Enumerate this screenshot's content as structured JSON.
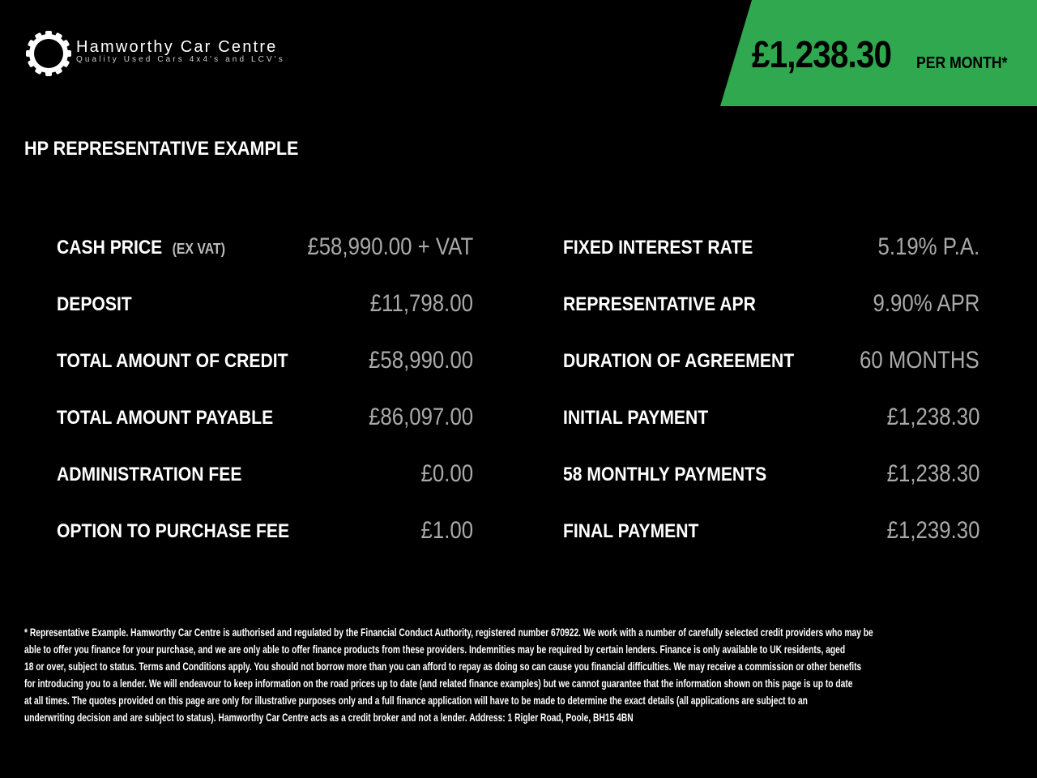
{
  "brand": {
    "name": "Hamworthy Car Centre",
    "tagline": "Quality Used Cars 4x4's and LCV's",
    "logo_icon": "gear-ring-icon"
  },
  "banner": {
    "price": "£1,238.30",
    "per": "PER MONTH*",
    "color": "#2fa84f"
  },
  "heading": "HP REPRESENTATIVE EXAMPLE",
  "left_rows": [
    {
      "label": "CASH PRICE",
      "note": "(EX VAT)",
      "value": "£58,990.00 + VAT"
    },
    {
      "label": "DEPOSIT",
      "value": "£11,798.00"
    },
    {
      "label": "TOTAL AMOUNT OF CREDIT",
      "value": "£58,990.00"
    },
    {
      "label": "TOTAL AMOUNT PAYABLE",
      "value": "£86,097.00"
    },
    {
      "label": "ADMINISTRATION FEE",
      "value": "£0.00"
    },
    {
      "label": "OPTION TO PURCHASE FEE",
      "value": "£1.00"
    }
  ],
  "right_rows": [
    {
      "label": "FIXED INTEREST RATE",
      "value": "5.19% P.A."
    },
    {
      "label": "REPRESENTATIVE APR",
      "value": "9.90% APR"
    },
    {
      "label": "DURATION OF AGREEMENT",
      "value": "60 MONTHS"
    },
    {
      "label": "INITIAL PAYMENT",
      "value": "£1,238.30"
    },
    {
      "label": "58 MONTHLY PAYMENTS",
      "value": "£1,238.30"
    },
    {
      "label": "FINAL PAYMENT",
      "value": "£1,239.30"
    }
  ],
  "disclaimer": [
    "* Representative Example. Hamworthy Car Centre is authorised and regulated by the Financial Conduct Authority, registered number 670922. We work with a number of carefully selected credit providers who may be",
    "able to offer you finance for your purchase, and we are only able to offer finance products from these providers. Indemnities may be required by certain lenders. Finance is only available to UK residents, aged",
    "18 or over, subject to status. Terms and Conditions apply. You should not borrow more than you can afford to repay as doing so can cause you financial difficulties. We may receive a commission or other benefits",
    "for introducing you to a lender. We will endeavour to keep information on the road prices up to date (and related finance examples) but we cannot guarantee that the information shown on this page is up to date",
    "at all times. The quotes provided on this page are only for illustrative purposes only and a full finance application will have to be made to determine the exact details (all applications are subject to an",
    "underwriting decision and are subject to status). Hamworthy Car Centre acts as a credit broker and not a lender. Address: 1 Rigler Road, Poole, BH15 4BN"
  ]
}
